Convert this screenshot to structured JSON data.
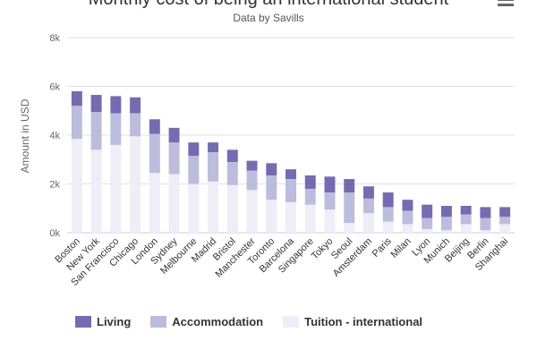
{
  "chart_data": {
    "type": "bar",
    "stacked": true,
    "title": "Monthly cost of being an international student",
    "subtitle": "Data by Savills",
    "ylabel": "Amount in USD",
    "xlabel": "",
    "ylim": [
      0,
      8000
    ],
    "yticks": [
      0,
      2000,
      4000,
      6000,
      8000
    ],
    "ytick_labels": [
      "0k",
      "2k",
      "4k",
      "6k",
      "8k"
    ],
    "grid": true,
    "legend_position": "bottom-left",
    "categories": [
      "Boston",
      "New York",
      "San Francisco",
      "Chicago",
      "London",
      "Sydney",
      "Melbourne",
      "Madrid",
      "Bristol",
      "Manchester",
      "Toronto",
      "Barcelona",
      "Singapore",
      "Tokyo",
      "Seoul",
      "Amsterdam",
      "Paris",
      "Milan",
      "Lyon",
      "Munich",
      "Beijing",
      "Berlin",
      "Shanghai"
    ],
    "series": [
      {
        "name": "Tuition - international",
        "color": "#efedf5",
        "values": [
          3850,
          3400,
          3600,
          3950,
          2450,
          2400,
          2000,
          2100,
          1950,
          1750,
          1350,
          1250,
          1150,
          950,
          400,
          800,
          450,
          350,
          150,
          100,
          350,
          100,
          350
        ]
      },
      {
        "name": "Accommodation",
        "color": "#bcbddc",
        "values": [
          1350,
          1550,
          1300,
          950,
          1600,
          1300,
          1150,
          1200,
          950,
          800,
          1000,
          950,
          650,
          700,
          1250,
          600,
          600,
          550,
          450,
          550,
          400,
          500,
          300
        ]
      },
      {
        "name": "Living",
        "color": "#756bb1",
        "values": [
          600,
          700,
          700,
          650,
          600,
          600,
          550,
          400,
          500,
          400,
          500,
          400,
          550,
          650,
          550,
          500,
          600,
          450,
          550,
          450,
          350,
          450,
          400
        ]
      }
    ],
    "legend_order": [
      2,
      1,
      0
    ],
    "legend_labels": [
      "Living",
      "Accommodation",
      "Tuition - international"
    ]
  }
}
